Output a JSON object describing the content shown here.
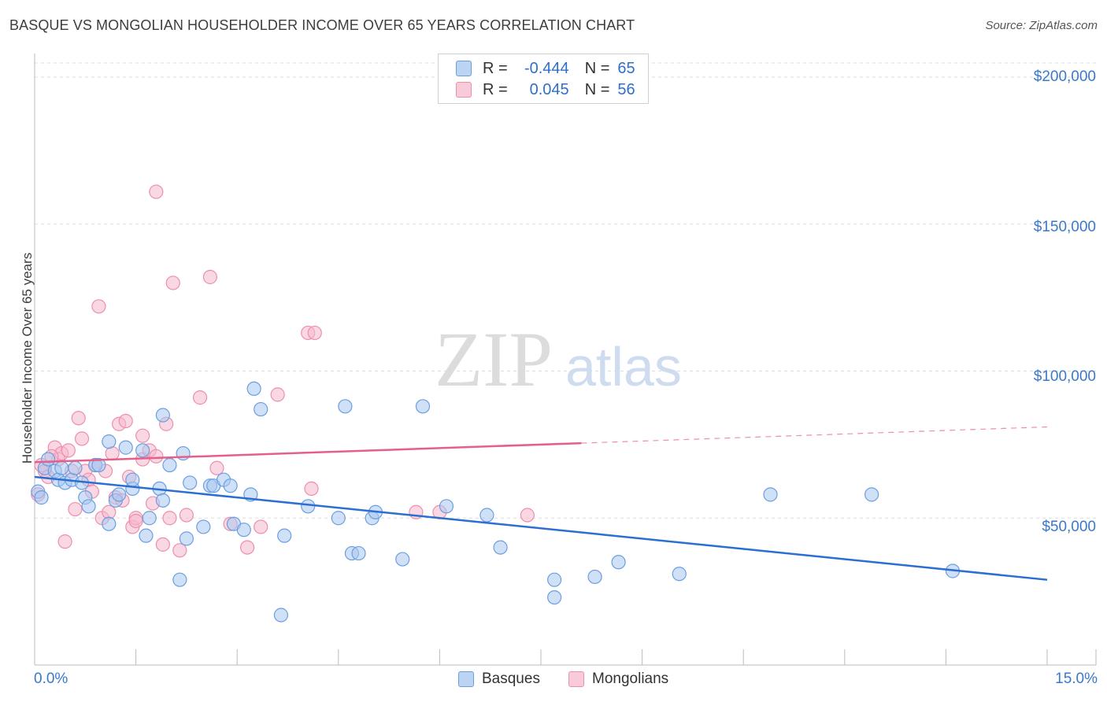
{
  "title": "BASQUE VS MONGOLIAN HOUSEHOLDER INCOME OVER 65 YEARS CORRELATION CHART",
  "source": "Source: ZipAtlas.com",
  "watermark": {
    "zip": "ZIP",
    "atlas": "atlas"
  },
  "legend": {
    "basque": {
      "r_label": "R =",
      "r_value": "-0.444",
      "n_label": "N =",
      "n_value": "65"
    },
    "mongolian": {
      "r_label": "R =",
      "r_value": "0.045",
      "n_label": "N =",
      "n_value": "56"
    }
  },
  "bottom_legend": {
    "basque": "Basques",
    "mongolian": "Mongolians"
  },
  "colors": {
    "basque_fill": "#a9c8f0",
    "basque_stroke": "#6b9ee0",
    "basque_line": "#2a6fd1",
    "mongolian_fill": "#f6b8cc",
    "mongolian_stroke": "#ec8fae",
    "mongolian_line": "#e4608a",
    "axis_text": "#3b78c8",
    "grid": "#dddddd"
  },
  "chart_data": {
    "type": "scatter",
    "title": "BASQUE VS MONGOLIAN HOUSEHOLDER INCOME OVER 65 YEARS CORRELATION CHART",
    "xlabel": "",
    "ylabel": "Householder Income Over 65 years",
    "xlim": [
      0,
      15
    ],
    "ylim": [
      0,
      210000
    ],
    "x_tick_labels": [
      "0.0%",
      "15.0%"
    ],
    "y_ticks": [
      50000,
      100000,
      150000,
      200000
    ],
    "y_tick_labels": [
      "$50,000",
      "$100,000",
      "$150,000",
      "$200,000"
    ],
    "series": [
      {
        "name": "Basques",
        "R": -0.444,
        "N": 65,
        "trend": {
          "x": [
            0,
            15
          ],
          "y": [
            64000,
            29000
          ],
          "solid_until": 15
        },
        "points": [
          [
            0.05,
            59000
          ],
          [
            0.15,
            67000
          ],
          [
            0.2,
            70000
          ],
          [
            0.3,
            66000
          ],
          [
            0.35,
            63000
          ],
          [
            0.4,
            67000
          ],
          [
            0.45,
            62000
          ],
          [
            0.55,
            63000
          ],
          [
            0.6,
            67000
          ],
          [
            0.7,
            62000
          ],
          [
            0.75,
            57000
          ],
          [
            0.8,
            54000
          ],
          [
            0.9,
            68000
          ],
          [
            0.95,
            68000
          ],
          [
            1.1,
            48000
          ],
          [
            1.1,
            76000
          ],
          [
            1.2,
            56000
          ],
          [
            1.25,
            58000
          ],
          [
            1.35,
            74000
          ],
          [
            1.45,
            60000
          ],
          [
            1.45,
            63000
          ],
          [
            1.6,
            73000
          ],
          [
            1.65,
            44000
          ],
          [
            1.7,
            50000
          ],
          [
            1.85,
            60000
          ],
          [
            1.9,
            56000
          ],
          [
            1.9,
            85000
          ],
          [
            2.0,
            68000
          ],
          [
            2.15,
            29000
          ],
          [
            2.2,
            72000
          ],
          [
            2.25,
            43000
          ],
          [
            2.3,
            62000
          ],
          [
            2.5,
            47000
          ],
          [
            2.6,
            61000
          ],
          [
            2.65,
            61000
          ],
          [
            2.8,
            63000
          ],
          [
            2.9,
            61000
          ],
          [
            2.95,
            48000
          ],
          [
            3.1,
            46000
          ],
          [
            3.2,
            58000
          ],
          [
            3.25,
            94000
          ],
          [
            3.35,
            87000
          ],
          [
            3.65,
            17000
          ],
          [
            3.7,
            44000
          ],
          [
            4.05,
            54000
          ],
          [
            4.5,
            50000
          ],
          [
            4.6,
            88000
          ],
          [
            4.7,
            38000
          ],
          [
            4.8,
            38000
          ],
          [
            5.0,
            50000
          ],
          [
            5.05,
            52000
          ],
          [
            5.45,
            36000
          ],
          [
            5.75,
            88000
          ],
          [
            6.1,
            54000
          ],
          [
            6.7,
            51000
          ],
          [
            6.9,
            40000
          ],
          [
            7.7,
            29000
          ],
          [
            7.7,
            23000
          ],
          [
            8.3,
            30000
          ],
          [
            8.65,
            35000
          ],
          [
            9.55,
            31000
          ],
          [
            10.9,
            58000
          ],
          [
            12.4,
            58000
          ],
          [
            13.6,
            32000
          ],
          [
            0.1,
            57000
          ]
        ]
      },
      {
        "name": "Mongolians",
        "R": 0.045,
        "N": 56,
        "trend": {
          "x": [
            0,
            15
          ],
          "y": [
            69000,
            81000
          ],
          "solid_until": 8.1
        },
        "points": [
          [
            0.05,
            58000
          ],
          [
            0.1,
            68000
          ],
          [
            0.15,
            66000
          ],
          [
            0.2,
            64000
          ],
          [
            0.3,
            74000
          ],
          [
            0.35,
            70000
          ],
          [
            0.4,
            72000
          ],
          [
            0.45,
            42000
          ],
          [
            0.5,
            73000
          ],
          [
            0.55,
            66000
          ],
          [
            0.6,
            53000
          ],
          [
            0.65,
            84000
          ],
          [
            0.7,
            77000
          ],
          [
            0.75,
            66000
          ],
          [
            0.8,
            63000
          ],
          [
            0.9,
            68000
          ],
          [
            0.95,
            122000
          ],
          [
            1.0,
            50000
          ],
          [
            1.05,
            66000
          ],
          [
            1.1,
            52000
          ],
          [
            1.15,
            72000
          ],
          [
            1.2,
            57000
          ],
          [
            1.25,
            82000
          ],
          [
            1.35,
            83000
          ],
          [
            1.4,
            64000
          ],
          [
            1.45,
            47000
          ],
          [
            1.5,
            50000
          ],
          [
            1.5,
            49000
          ],
          [
            1.6,
            78000
          ],
          [
            1.6,
            70000
          ],
          [
            1.7,
            73000
          ],
          [
            1.75,
            55000
          ],
          [
            1.8,
            161000
          ],
          [
            1.8,
            71000
          ],
          [
            1.9,
            41000
          ],
          [
            1.95,
            82000
          ],
          [
            2.0,
            50000
          ],
          [
            2.05,
            130000
          ],
          [
            2.15,
            39000
          ],
          [
            2.25,
            51000
          ],
          [
            2.45,
            91000
          ],
          [
            2.6,
            132000
          ],
          [
            2.7,
            67000
          ],
          [
            2.9,
            48000
          ],
          [
            3.15,
            40000
          ],
          [
            3.35,
            47000
          ],
          [
            3.6,
            92000
          ],
          [
            4.05,
            113000
          ],
          [
            4.1,
            60000
          ],
          [
            4.15,
            113000
          ],
          [
            5.65,
            52000
          ],
          [
            6.0,
            52000
          ],
          [
            7.3,
            51000
          ],
          [
            0.25,
            71000
          ],
          [
            0.85,
            59000
          ],
          [
            1.3,
            56000
          ]
        ]
      }
    ]
  }
}
